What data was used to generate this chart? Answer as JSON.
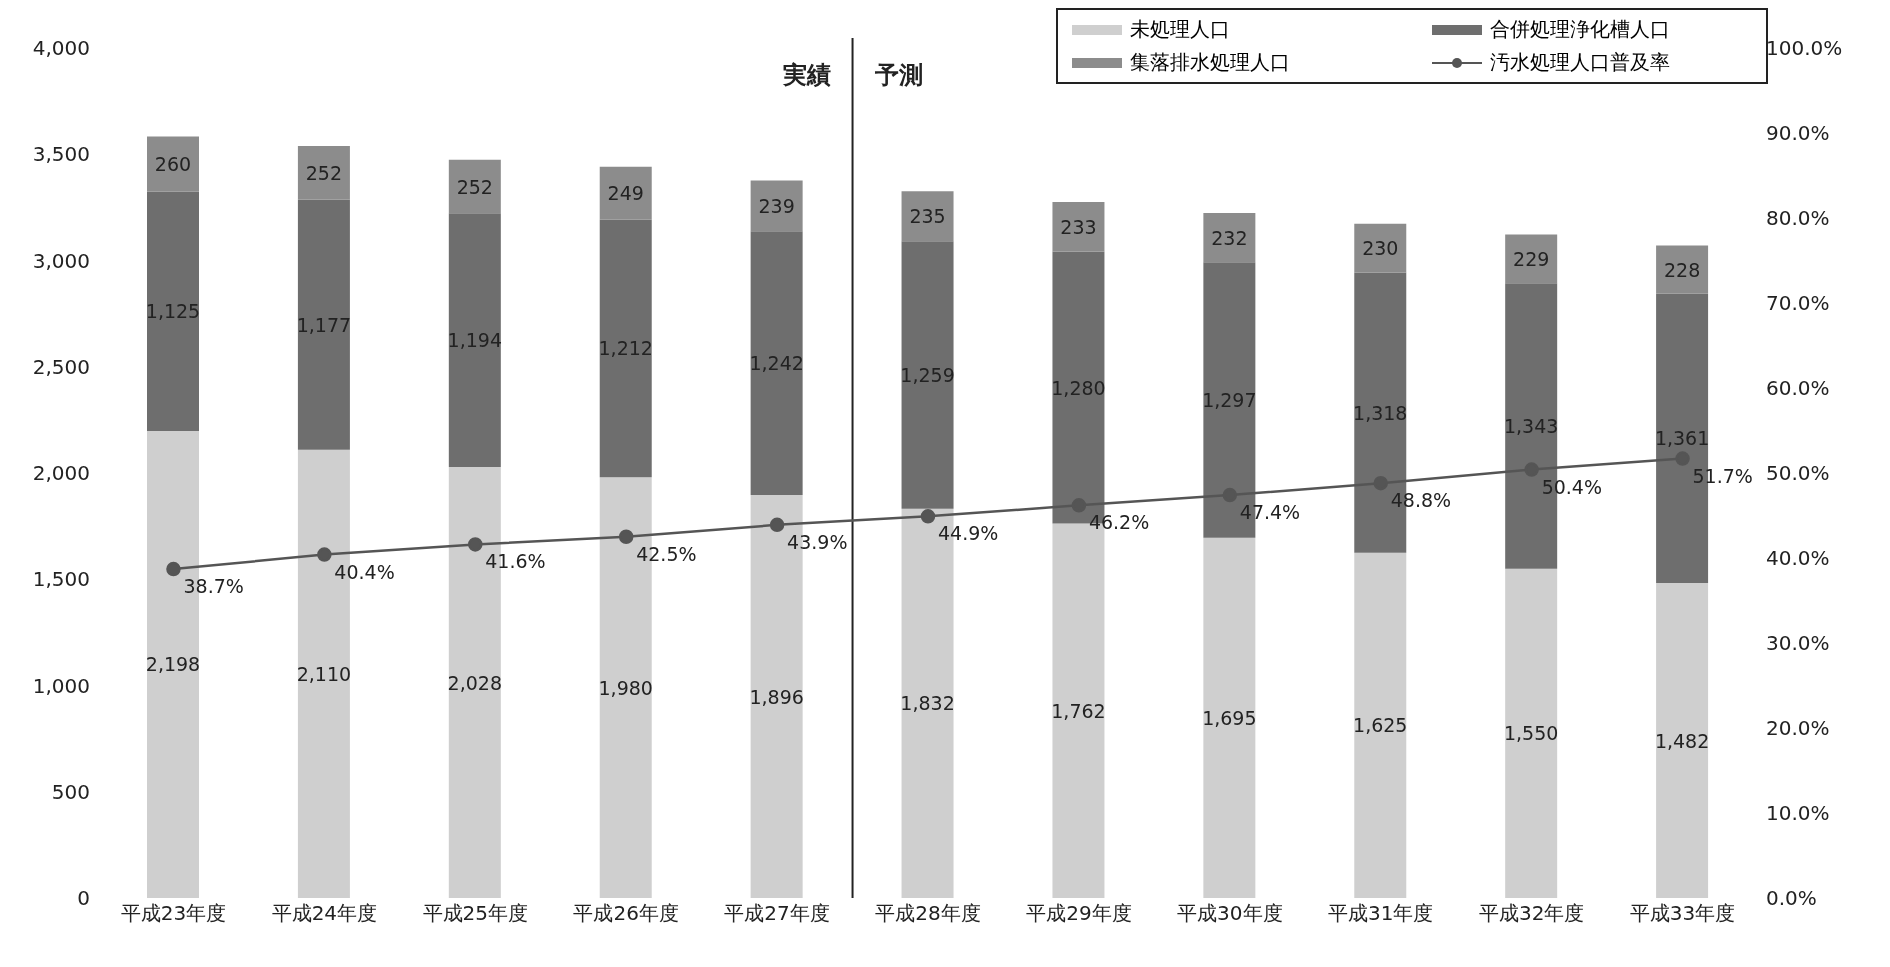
{
  "chart_data": {
    "type": "bar",
    "stacked": true,
    "categories": [
      "平成23年度",
      "平成24年度",
      "平成25年度",
      "平成26年度",
      "平成27年度",
      "平成28年度",
      "平成29年度",
      "平成30年度",
      "平成31年度",
      "平成32年度",
      "平成33年度"
    ],
    "series": [
      {
        "name": "未処理人口",
        "color": "#cfcfcf",
        "values": [
          2198,
          2110,
          2028,
          1980,
          1896,
          1832,
          1762,
          1695,
          1625,
          1550,
          1482
        ],
        "value_labels": [
          "2,198",
          "2,110",
          "2,028",
          "1,980",
          "1,896",
          "1,832",
          "1,762",
          "1,695",
          "1,625",
          "1,550",
          "1,482"
        ]
      },
      {
        "name": "合併処理浄化槽人口",
        "color": "#6e6e6e",
        "values": [
          1125,
          1177,
          1194,
          1212,
          1242,
          1259,
          1280,
          1297,
          1318,
          1343,
          1361
        ],
        "value_labels": [
          "1,125",
          "1,177",
          "1,194",
          "1,212",
          "1,242",
          "1,259",
          "1,280",
          "1,297",
          "1,318",
          "1,343",
          "1,361"
        ]
      },
      {
        "name": "集落排水処理人口",
        "color": "#8c8c8c",
        "values": [
          260,
          252,
          252,
          249,
          239,
          235,
          233,
          232,
          230,
          229,
          228
        ],
        "value_labels": [
          "260",
          "252",
          "252",
          "249",
          "239",
          "235",
          "233",
          "232",
          "230",
          "229",
          "228"
        ]
      },
      {
        "name": "汚水処理人口普及率",
        "type": "line",
        "axis": "y2",
        "color": "#555555",
        "marker": "circle",
        "values": [
          38.7,
          40.4,
          41.6,
          42.5,
          43.9,
          44.9,
          46.2,
          47.4,
          48.8,
          50.4,
          51.7
        ],
        "value_labels": [
          "38.7%",
          "40.4%",
          "41.6%",
          "42.5%",
          "43.9%",
          "44.9%",
          "46.2%",
          "47.4%",
          "48.8%",
          "50.4%",
          "51.7%"
        ]
      }
    ],
    "ylim": [
      0,
      4000
    ],
    "yticks": [
      {
        "value": 0,
        "label": "0"
      },
      {
        "value": 500,
        "label": "500"
      },
      {
        "value": 1000,
        "label": "1,000"
      },
      {
        "value": 1500,
        "label": "1,500"
      },
      {
        "value": 2000,
        "label": "2,000"
      },
      {
        "value": 2500,
        "label": "2,500"
      },
      {
        "value": 3000,
        "label": "3,000"
      },
      {
        "value": 3500,
        "label": "3,500"
      },
      {
        "value": 4000,
        "label": "4,000"
      }
    ],
    "y2lim": [
      0,
      100
    ],
    "y2ticks": [
      {
        "value": 0,
        "label": "0.0%"
      },
      {
        "value": 10,
        "label": "10.0%"
      },
      {
        "value": 20,
        "label": "20.0%"
      },
      {
        "value": 30,
        "label": "30.0%"
      },
      {
        "value": 40,
        "label": "40.0%"
      },
      {
        "value": 50,
        "label": "50.0%"
      },
      {
        "value": 60,
        "label": "60.0%"
      },
      {
        "value": 70,
        "label": "70.0%"
      },
      {
        "value": 80,
        "label": "80.0%"
      },
      {
        "value": 90,
        "label": "90.0%"
      },
      {
        "value": 100,
        "label": "100.0%"
      }
    ],
    "annotations": [
      "実績",
      "予測"
    ],
    "legend": "top right",
    "grid": false
  }
}
